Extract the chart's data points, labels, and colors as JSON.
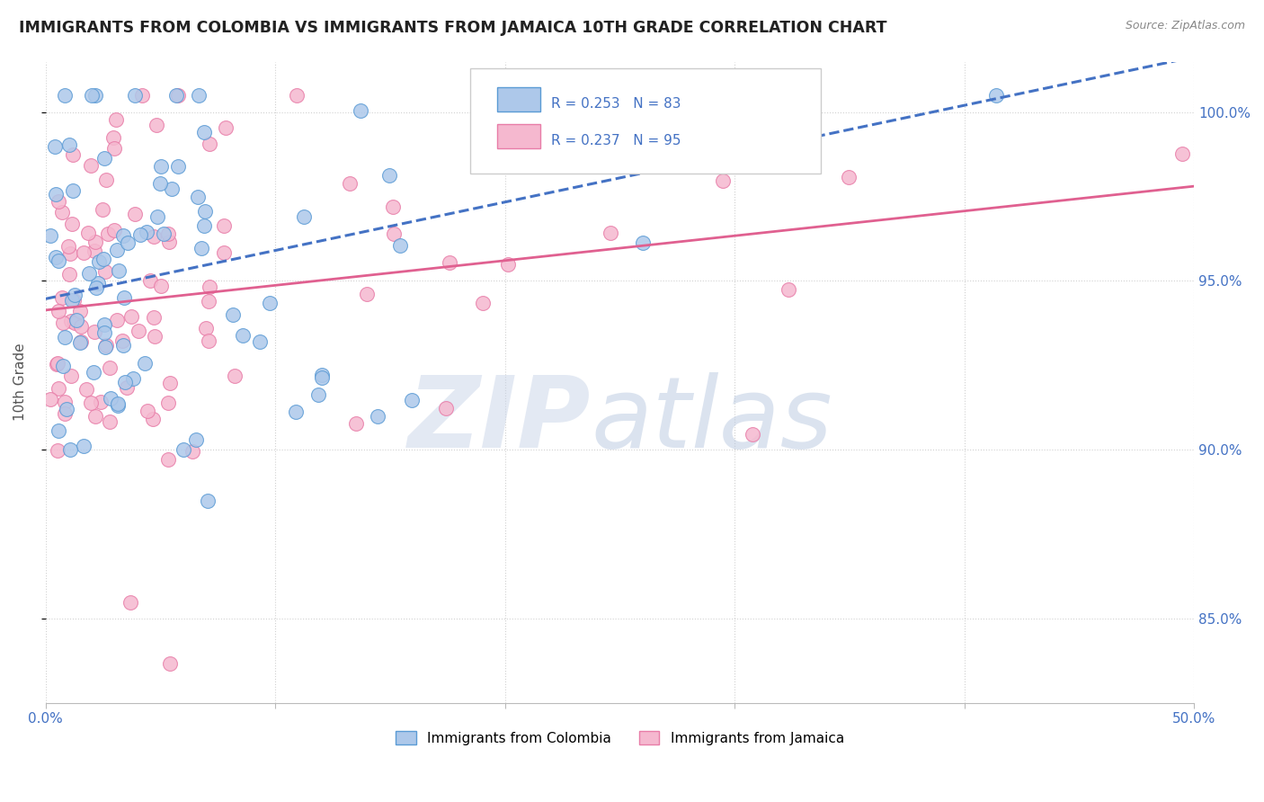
{
  "title": "IMMIGRANTS FROM COLOMBIA VS IMMIGRANTS FROM JAMAICA 10TH GRADE CORRELATION CHART",
  "source_text": "Source: ZipAtlas.com",
  "ylabel": "10th Grade",
  "xlim": [
    0.0,
    50.0
  ],
  "ylim": [
    82.5,
    101.5
  ],
  "colombia_R": 0.253,
  "colombia_N": 83,
  "jamaica_R": 0.237,
  "jamaica_N": 95,
  "colombia_color": "#adc8ea",
  "jamaica_color": "#f5b8cf",
  "colombia_edge_color": "#5b9bd5",
  "jamaica_edge_color": "#e87da8",
  "colombia_line_color": "#4472c4",
  "jamaica_line_color": "#e06090",
  "background_color": "#ffffff",
  "title_color": "#222222",
  "tick_label_color": "#4472c4",
  "grid_color": "#cccccc",
  "watermark_zip_color": "#c8d4e8",
  "watermark_atlas_color": "#b8c8e0"
}
